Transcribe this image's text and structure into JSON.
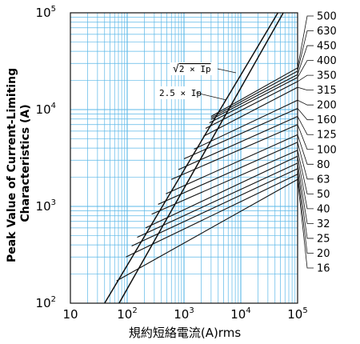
{
  "chart_data": {
    "type": "line",
    "x_scale": "log",
    "y_scale": "log",
    "xlim": [
      10,
      100000
    ],
    "ylim": [
      100,
      100000
    ],
    "grid": true,
    "ylabel_line1": "Peak Value of Current-Limiting",
    "ylabel_line2": "Characteristics (A)",
    "xlabel": "規約短絡電流(A)rms",
    "x_ticks": [
      {
        "base": "10",
        "exp": "",
        "value": 10
      },
      {
        "base": "10",
        "exp": "2",
        "value": 100
      },
      {
        "base": "10",
        "exp": "3",
        "value": 1000
      },
      {
        "base": "10",
        "exp": "4",
        "value": 10000
      },
      {
        "base": "10",
        "exp": "5",
        "value": 100000
      }
    ],
    "y_ticks": [
      {
        "base": "10",
        "exp": "2",
        "value": 100
      },
      {
        "base": "10",
        "exp": "3",
        "value": 1000
      },
      {
        "base": "10",
        "exp": "4",
        "value": 10000
      },
      {
        "base": "10",
        "exp": "5",
        "value": 100000
      }
    ],
    "reference_lines": [
      {
        "label": "√2 × Ip",
        "label_prefix": "√",
        "label_rest": "2 × Ip",
        "points": [
          [
            40,
            100
          ],
          [
            45000,
            100000
          ]
        ]
      },
      {
        "label": "2.5 × Ip",
        "points": [
          [
            72,
            100
          ],
          [
            56000,
            100000
          ]
        ]
      }
    ],
    "series": [
      {
        "name": "500",
        "start": [
          3000,
          8500
        ],
        "end": [
          100000,
          27000
        ]
      },
      {
        "name": "630",
        "start": [
          3000,
          8200
        ],
        "end": [
          100000,
          25000
        ]
      },
      {
        "name": "450",
        "start": [
          3000,
          7900
        ],
        "end": [
          100000,
          23000
        ]
      },
      {
        "name": "400",
        "start": [
          2800,
          7300
        ],
        "end": [
          100000,
          21500
        ]
      },
      {
        "name": "350",
        "start": [
          2400,
          6400
        ],
        "end": [
          100000,
          19500
        ]
      },
      {
        "name": "315",
        "start": [
          2200,
          5300
        ],
        "end": [
          100000,
          17000
        ]
      },
      {
        "name": "200",
        "start": [
          1500,
          3900
        ],
        "end": [
          100000,
          12500
        ]
      },
      {
        "name": "160",
        "start": [
          1000,
          3100
        ],
        "end": [
          100000,
          10300
        ]
      },
      {
        "name": "125",
        "start": [
          800,
          2400
        ],
        "end": [
          100000,
          8500
        ]
      },
      {
        "name": "100",
        "start": [
          600,
          1900
        ],
        "end": [
          100000,
          7000
        ]
      },
      {
        "name": "80",
        "start": [
          480,
          1350
        ],
        "end": [
          100000,
          5500
        ]
      },
      {
        "name": "63",
        "start": [
          350,
          1050
        ],
        "end": [
          100000,
          4600
        ]
      },
      {
        "name": "50",
        "start": [
          270,
          830
        ],
        "end": [
          100000,
          3800
        ]
      },
      {
        "name": "40",
        "start": [
          210,
          600
        ],
        "end": [
          100000,
          3300
        ]
      },
      {
        "name": "32",
        "start": [
          150,
          480
        ],
        "end": [
          100000,
          2800
        ]
      },
      {
        "name": "25",
        "start": [
          120,
          390
        ],
        "end": [
          100000,
          2450
        ]
      },
      {
        "name": "20",
        "start": [
          95,
          300
        ],
        "end": [
          100000,
          2150
        ]
      },
      {
        "name": "16",
        "start": [
          65,
          170
        ],
        "end": [
          100000,
          1900
        ]
      }
    ]
  }
}
